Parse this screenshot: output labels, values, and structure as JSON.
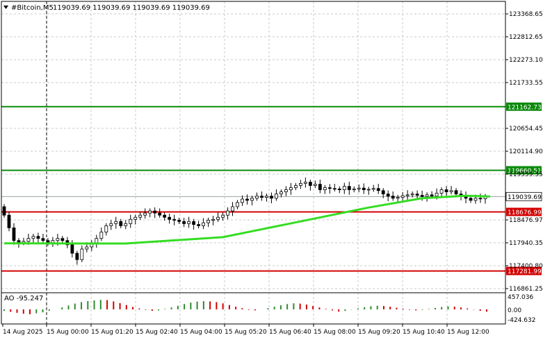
{
  "header": {
    "symbol_label": "#Bitcoin,M5",
    "ohlc": "119039.69 119039.69 119039.69 119039.69"
  },
  "indicator": {
    "label": "AO -95.247",
    "scale": [
      "457.036",
      "0.00",
      "-424.632"
    ]
  },
  "price_axis": [
    "123368.65",
    "122812.65",
    "122273.10",
    "121733.55",
    "120654.45",
    "120114.90",
    "119559.35",
    "118476.97",
    "117940.35",
    "117400.80",
    "116861.25"
  ],
  "time_axis": [
    "14 Aug 2025",
    "15 Aug 00:00",
    "15 Aug 01:20",
    "15 Aug 02:40",
    "15 Aug 04:00",
    "15 Aug 05:20",
    "15 Aug 06:40",
    "15 Aug 08:00",
    "15 Aug 09:20",
    "15 Aug 10:40",
    "15 Aug 12:00"
  ],
  "levels": [
    {
      "label": "121162.73",
      "value": 121162.73,
      "color": "#0a8a0a"
    },
    {
      "label": "119660.51",
      "value": 119660.51,
      "color": "#0a8a0a"
    },
    {
      "label": "118676.99",
      "value": 118676.99,
      "color": "#d40000"
    },
    {
      "label": "117281.99",
      "value": 117281.99,
      "color": "#d40000"
    }
  ],
  "current_price": {
    "label": "119039.69",
    "value": 119039.69
  },
  "colors": {
    "candle": "#000000",
    "ma": "#33dd22",
    "grid": "#c8c8c8",
    "ao_up": "#2e8b2e",
    "ao_down": "#d00000",
    "axis": "#000000"
  },
  "chart_data": {
    "type": "candlestick",
    "timeframe": "M5",
    "y_range": [
      116800,
      123650
    ],
    "closes": [
      118600,
      118300,
      118000,
      117950,
      117980,
      118050,
      118100,
      118050,
      118000,
      117950,
      118000,
      118050,
      118000,
      117900,
      117700,
      117550,
      117800,
      117850,
      117950,
      118050,
      118200,
      118350,
      118400,
      118450,
      118350,
      118400,
      118500,
      118550,
      118600,
      118650,
      118700,
      118650,
      118600,
      118550,
      118500,
      118480,
      118450,
      118400,
      118450,
      118380,
      118350,
      118420,
      118480,
      118500,
      118550,
      118600,
      118700,
      118800,
      118900,
      118980,
      118950,
      119000,
      119050,
      119020,
      119050,
      119000,
      119100,
      119150,
      119200,
      119250,
      119300,
      119350,
      119380,
      119300,
      119330,
      119200,
      119250,
      119230,
      119220,
      119200,
      119280,
      119200,
      119220,
      119240,
      119200,
      119210,
      119230,
      119180,
      119100,
      119050,
      119000,
      119020,
      119060,
      119080,
      119100,
      119070,
      119040,
      119080,
      119050,
      119120,
      119200,
      119150,
      119180,
      119100,
      119050,
      119000,
      118950,
      119000,
      118990,
      119039.69
    ],
    "ma_line": [
      [
        0,
        117935
      ],
      [
        25,
        117930
      ],
      [
        45,
        118080
      ],
      [
        60,
        118430
      ],
      [
        75,
        118780
      ],
      [
        86,
        119000
      ],
      [
        95,
        119060
      ],
      [
        100,
        119040
      ]
    ],
    "ao_values": [
      -60,
      -100,
      -140,
      -180,
      -200,
      -160,
      -120,
      -60,
      0,
      80,
      160,
      240,
      300,
      340,
      370,
      390,
      380,
      330,
      260,
      180,
      100,
      40,
      -20,
      -60,
      -40,
      20,
      80,
      150,
      220,
      280,
      320,
      340,
      330,
      300,
      250,
      180,
      110,
      50,
      -20,
      -40,
      0,
      50,
      110,
      170,
      220,
      250,
      240,
      200,
      140,
      80,
      20,
      -40,
      -90,
      -60,
      -10,
      40,
      90,
      130,
      150,
      140,
      110,
      70,
      30,
      -20,
      -40,
      -20,
      20,
      60,
      100,
      120,
      110,
      80,
      40,
      -10,
      -60,
      -95.247
    ]
  }
}
